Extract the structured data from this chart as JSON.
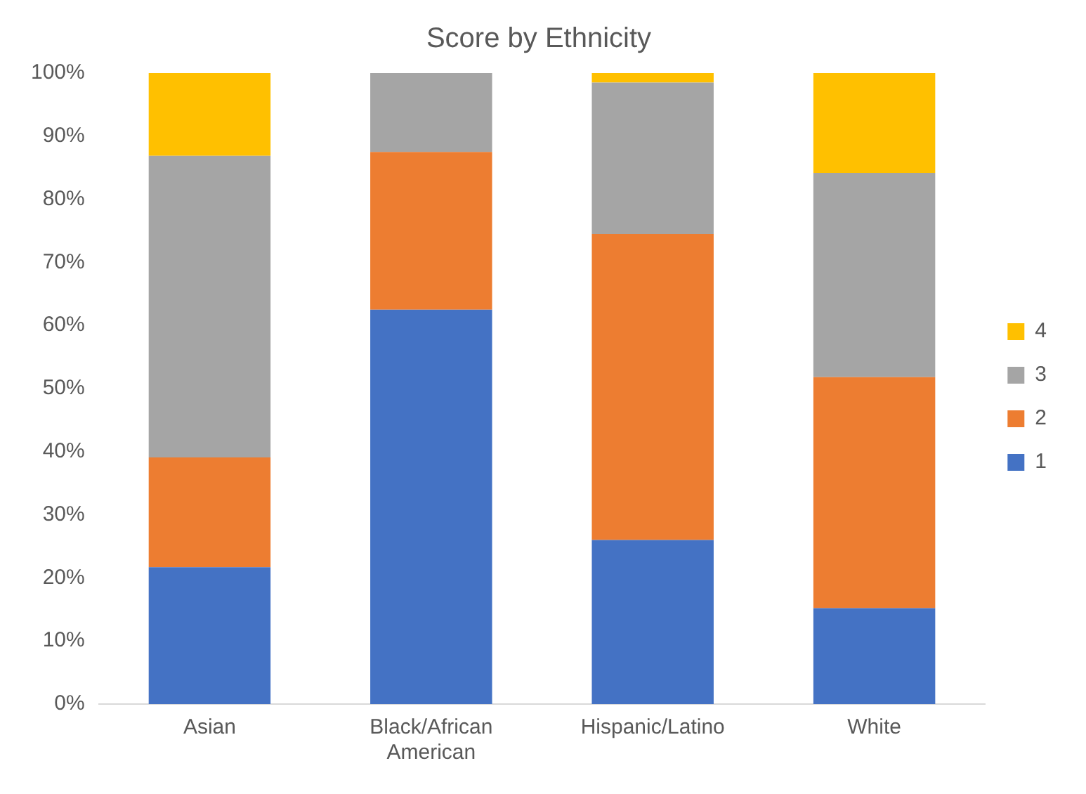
{
  "chart_data": {
    "type": "bar",
    "title": "Score by Ethnicity",
    "categories": [
      "Asian",
      "Black/African American",
      "Hispanic/Latino",
      "White"
    ],
    "stacked": true,
    "series": [
      {
        "name": "1",
        "color": "#4472c4",
        "values": [
          21.7,
          62.5,
          26,
          15.2
        ]
      },
      {
        "name": "2",
        "color": "#ed7d31",
        "values": [
          17.4,
          25,
          48.5,
          36.6
        ]
      },
      {
        "name": "3",
        "color": "#a5a5a5",
        "values": [
          47.8,
          12.5,
          24,
          32.4
        ]
      },
      {
        "name": "4",
        "color": "#ffc000",
        "values": [
          13.1,
          0,
          1.5,
          15.8
        ]
      }
    ],
    "ylim": [
      0,
      100
    ],
    "yticks": [
      {
        "value": 0,
        "label": "0%"
      },
      {
        "value": 10,
        "label": "10%"
      },
      {
        "value": 20,
        "label": "20%"
      },
      {
        "value": 30,
        "label": "30%"
      },
      {
        "value": 40,
        "label": "40%"
      },
      {
        "value": 50,
        "label": "50%"
      },
      {
        "value": 60,
        "label": "60%"
      },
      {
        "value": 70,
        "label": "70%"
      },
      {
        "value": 80,
        "label": "80%"
      },
      {
        "value": 90,
        "label": "90%"
      },
      {
        "value": 100,
        "label": "100%"
      }
    ],
    "grid": false,
    "legend": "right"
  }
}
